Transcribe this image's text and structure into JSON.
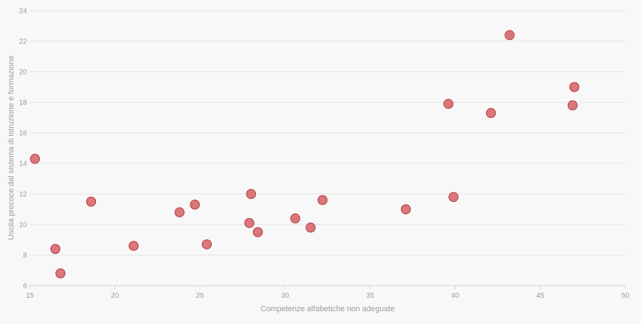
{
  "chart_data": {
    "type": "scatter",
    "title": "",
    "xlabel": "Competenze alfabetiche non adeguate",
    "ylabel": "Uscita precoce dal sistema di istruzione e formazione",
    "xlim": [
      15,
      50
    ],
    "ylim": [
      6,
      24
    ],
    "xticks": [
      15,
      20,
      25,
      30,
      35,
      40,
      45,
      50
    ],
    "yticks": [
      6,
      8,
      10,
      12,
      14,
      16,
      18,
      20,
      22,
      24
    ],
    "grid": "horizontal",
    "point_color": "#d9777a",
    "point_stroke": "#b8383d",
    "points": [
      {
        "x": 15.3,
        "y": 14.3
      },
      {
        "x": 16.5,
        "y": 8.4
      },
      {
        "x": 16.8,
        "y": 6.8
      },
      {
        "x": 18.6,
        "y": 11.5
      },
      {
        "x": 21.1,
        "y": 8.6
      },
      {
        "x": 23.8,
        "y": 10.8
      },
      {
        "x": 24.7,
        "y": 11.3
      },
      {
        "x": 25.4,
        "y": 8.7
      },
      {
        "x": 27.9,
        "y": 10.1
      },
      {
        "x": 28.0,
        "y": 12.0
      },
      {
        "x": 28.4,
        "y": 9.5
      },
      {
        "x": 30.6,
        "y": 10.4
      },
      {
        "x": 31.5,
        "y": 9.8
      },
      {
        "x": 32.2,
        "y": 11.6
      },
      {
        "x": 37.1,
        "y": 11.0
      },
      {
        "x": 39.6,
        "y": 17.9
      },
      {
        "x": 39.9,
        "y": 11.8
      },
      {
        "x": 42.1,
        "y": 17.3
      },
      {
        "x": 43.2,
        "y": 22.4
      },
      {
        "x": 46.9,
        "y": 17.8
      },
      {
        "x": 47.0,
        "y": 19.0
      }
    ]
  }
}
